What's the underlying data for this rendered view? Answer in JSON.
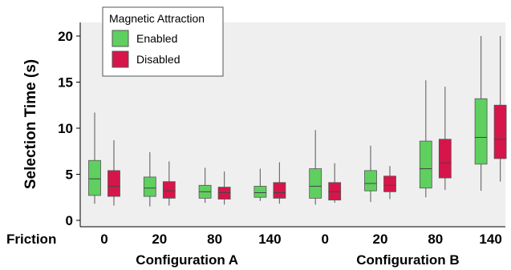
{
  "chart_data": {
    "type": "box",
    "ylabel": "Selection Time (s)",
    "ylim": [
      0,
      21
    ],
    "yticks": [
      0,
      5,
      10,
      15,
      20
    ],
    "grid": false,
    "x_axis_title": "Friction",
    "groups": [
      "Configuration A",
      "Configuration B"
    ],
    "categories": [
      "0",
      "20",
      "80",
      "140",
      "0",
      "20",
      "80",
      "140"
    ],
    "category_group": [
      0,
      0,
      0,
      0,
      1,
      1,
      1,
      1
    ],
    "legend": {
      "title": "Magnetic Attraction",
      "placement": "top-left",
      "entries": [
        "Enabled",
        "Disabled"
      ]
    },
    "colors": {
      "Enabled": "#5fcf5f",
      "Disabled": "#d6154a",
      "plot_background": "#efefef",
      "whisker": "#707070"
    },
    "series": [
      {
        "name": "Enabled",
        "boxes": [
          {
            "min": 1.8,
            "q1": 2.7,
            "median": 4.5,
            "q3": 6.5,
            "max": 11.7
          },
          {
            "min": 1.5,
            "q1": 2.6,
            "median": 3.5,
            "q3": 4.7,
            "max": 7.4
          },
          {
            "min": 1.9,
            "q1": 2.4,
            "median": 3.1,
            "q3": 3.8,
            "max": 5.7
          },
          {
            "min": 2.1,
            "q1": 2.5,
            "median": 3.0,
            "q3": 3.7,
            "max": 5.6
          },
          {
            "min": 1.7,
            "q1": 2.4,
            "median": 3.7,
            "q3": 5.6,
            "max": 9.8
          },
          {
            "min": 2.0,
            "q1": 3.2,
            "median": 4.0,
            "q3": 5.4,
            "max": 8.1
          },
          {
            "min": 2.5,
            "q1": 3.5,
            "median": 5.6,
            "q3": 8.6,
            "max": 15.2
          },
          {
            "min": 3.2,
            "q1": 6.1,
            "median": 9.0,
            "q3": 13.2,
            "max": 20.0
          }
        ]
      },
      {
        "name": "Disabled",
        "boxes": [
          {
            "min": 1.6,
            "q1": 2.6,
            "median": 3.7,
            "q3": 5.4,
            "max": 8.7
          },
          {
            "min": 1.6,
            "q1": 2.4,
            "median": 3.2,
            "q3": 4.2,
            "max": 6.4
          },
          {
            "min": 1.7,
            "q1": 2.3,
            "median": 3.0,
            "q3": 3.6,
            "max": 5.3
          },
          {
            "min": 1.8,
            "q1": 2.4,
            "median": 3.0,
            "q3": 4.1,
            "max": 6.3
          },
          {
            "min": 1.9,
            "q1": 2.2,
            "median": 3.1,
            "q3": 4.1,
            "max": 6.2
          },
          {
            "min": 2.3,
            "q1": 3.1,
            "median": 3.8,
            "q3": 4.8,
            "max": 5.9
          },
          {
            "min": 3.3,
            "q1": 4.6,
            "median": 6.2,
            "q3": 8.8,
            "max": 14.5
          },
          {
            "min": 4.2,
            "q1": 6.7,
            "median": 8.8,
            "q3": 12.5,
            "max": 20.0
          }
        ]
      }
    ]
  }
}
